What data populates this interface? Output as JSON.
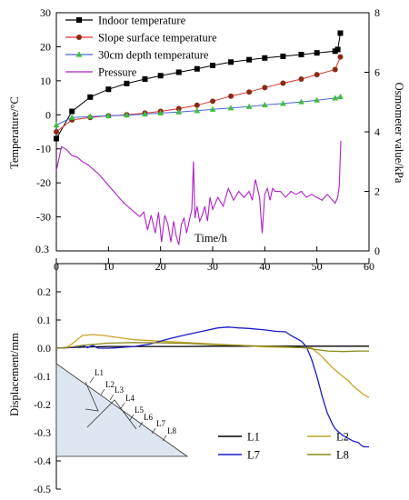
{
  "colors": {
    "indoor": "#000000",
    "slope": "#e23030",
    "slope_marker": "#8b2a12",
    "depth30": "#4a66d8",
    "depth30_marker": "#3fbf3f",
    "pressure": "#b020c8",
    "L1": "#000000",
    "L2": "#c9a227",
    "L7": "#1a1acc",
    "L8": "#8a8a1a",
    "slope_fill": "#dde6f0"
  },
  "chart_data": [
    {
      "type": "line",
      "xlabel": "Time/h",
      "ylabel_left": "Temperature/°C",
      "ylabel_right": "Osmometer value/kPa",
      "xlim": [
        0,
        60
      ],
      "ylim_left": [
        -40,
        30
      ],
      "ylim_right": [
        0,
        8
      ],
      "x_ticks": [
        "0",
        "10",
        "20",
        "30",
        "40",
        "50",
        "60"
      ],
      "y_ticks_left": [
        "30",
        "20",
        "10",
        "0",
        "-10",
        "-20",
        "-30"
      ],
      "y_ticks_left_values": [
        30,
        20,
        10,
        0,
        -10,
        -20,
        -30
      ],
      "y_bottom_label": "0.3",
      "y_ticks_right": [
        "8",
        "6",
        "4",
        "2",
        "0"
      ],
      "y_ticks_right_values": [
        8,
        6,
        4,
        2,
        0
      ],
      "legend_placement": "top-left",
      "series": [
        {
          "name": "Indoor temperature",
          "axis": "left",
          "marker": "square",
          "x": [
            0,
            3,
            6.5,
            10,
            13.5,
            17,
            20,
            23.5,
            27,
            30,
            33.5,
            37,
            40,
            43.5,
            47,
            50,
            53.5,
            54,
            54.5
          ],
          "y": [
            -7,
            1,
            5.2,
            7.5,
            9.2,
            10.5,
            11.5,
            12.5,
            13.5,
            14.5,
            15.5,
            16.2,
            16.7,
            17.2,
            17.7,
            18.2,
            18.7,
            19.2,
            24
          ]
        },
        {
          "name": "Slope surface temperature",
          "axis": "left",
          "marker": "circle",
          "x": [
            0,
            3,
            6.5,
            10,
            13.5,
            17,
            20,
            23.5,
            27,
            30,
            33.5,
            37,
            40,
            43.5,
            47,
            50,
            53.5,
            54.5
          ],
          "y": [
            -5,
            -1.5,
            -0.8,
            -0.3,
            0,
            0.5,
            1,
            1.8,
            2.8,
            4,
            5.5,
            6.7,
            8,
            9.3,
            10.5,
            11.8,
            13.3,
            17
          ]
        },
        {
          "name": "30cm depth temperature",
          "axis": "left",
          "marker": "triangle",
          "x": [
            0,
            3,
            6.5,
            10,
            13.5,
            17,
            20,
            23.5,
            27,
            30,
            33.5,
            37,
            40,
            43.5,
            47,
            50,
            53.5,
            54.5
          ],
          "y": [
            -3,
            -0.8,
            -0.5,
            -0.3,
            -0.1,
            0.2,
            0.5,
            0.8,
            1.2,
            1.6,
            2,
            2.4,
            2.9,
            3.3,
            3.8,
            4.3,
            4.9,
            5.3
          ]
        },
        {
          "name": "Pressure",
          "axis": "right",
          "marker": "none",
          "x": [
            0,
            1,
            2,
            3,
            4,
            5,
            6,
            7,
            8,
            9,
            10,
            11,
            12,
            13,
            14,
            15,
            16,
            16.8,
            17.5,
            18.2,
            19,
            19.6,
            20.2,
            20.8,
            21.4,
            22,
            22.5,
            23,
            23.5,
            24,
            24.5,
            25,
            25.5,
            26,
            26.3,
            26.6,
            27,
            27.5,
            28,
            28.5,
            29,
            29.5,
            30,
            31,
            32,
            33,
            34,
            35,
            36,
            37,
            37.6,
            38.2,
            39,
            39.5,
            40,
            40.5,
            41,
            41.5,
            42,
            43,
            44,
            45,
            46,
            47,
            48,
            49,
            50,
            51,
            52,
            53,
            53.5,
            54,
            54.3,
            54.6
          ],
          "y": [
            2.7,
            3.5,
            3.4,
            3.2,
            3.15,
            3.0,
            2.9,
            2.75,
            2.6,
            2.4,
            2.2,
            2.0,
            1.8,
            1.6,
            1.45,
            1.3,
            1.15,
            1.3,
            0.7,
            1.2,
            0.6,
            1.3,
            0.3,
            1.2,
            0.9,
            0.3,
            1.0,
            0.5,
            0.2,
            0.9,
            1.1,
            0.6,
            1.0,
            1.4,
            3.0,
            1.1,
            1.5,
            1.0,
            1.2,
            1.5,
            1.0,
            1.8,
            1.4,
            1.8,
            1.5,
            2.1,
            1.7,
            2.0,
            1.8,
            2.0,
            1.7,
            2.4,
            1.8,
            0.6,
            1.9,
            2.1,
            1.7,
            2.1,
            2.0,
            2.0,
            1.8,
            2.0,
            1.9,
            2.0,
            1.8,
            1.9,
            1.8,
            1.7,
            1.9,
            1.7,
            1.6,
            1.8,
            2.2,
            3.7
          ]
        }
      ]
    },
    {
      "type": "line",
      "ylabel": "Displacement/mm",
      "xlim": [
        0,
        60
      ],
      "ylim": [
        -0.5,
        0.3
      ],
      "y_ticks": [
        "0.2",
        "0.1",
        "0.0",
        "-0.1",
        "-0.2",
        "-0.3",
        "-0.4",
        "-0.5"
      ],
      "y_ticks_values": [
        0.2,
        0.1,
        0.0,
        -0.1,
        -0.2,
        -0.3,
        -0.4,
        -0.5
      ],
      "legend_placement": "bottom-right",
      "series": [
        {
          "name": "L1",
          "x": [
            0,
            5,
            10,
            15,
            20,
            25,
            30,
            35,
            40,
            45,
            50,
            55,
            60
          ],
          "y": [
            0.0,
            0.004,
            0.006,
            0.006,
            0.006,
            0.006,
            0.007,
            0.007,
            0.007,
            0.007,
            0.007,
            0.007,
            0.007
          ]
        },
        {
          "name": "L2",
          "x": [
            0,
            2,
            3,
            5,
            7,
            9,
            11,
            13,
            15,
            20,
            25,
            30,
            35,
            40,
            45,
            49,
            50,
            51,
            52,
            53,
            54,
            55,
            56,
            57,
            58,
            59,
            60
          ],
          "y": [
            0.0,
            0.003,
            0.015,
            0.045,
            0.048,
            0.045,
            0.04,
            0.035,
            0.03,
            0.025,
            0.02,
            0.015,
            0.01,
            0.005,
            0.003,
            0.001,
            -0.015,
            -0.03,
            -0.05,
            -0.07,
            -0.085,
            -0.1,
            -0.115,
            -0.135,
            -0.15,
            -0.165,
            -0.175
          ]
        },
        {
          "name": "L7",
          "x": [
            0,
            2,
            4,
            5,
            6,
            7,
            8,
            9,
            10,
            12,
            15,
            18,
            20,
            22,
            25,
            28,
            31,
            33,
            35,
            37,
            40,
            42,
            44,
            45,
            47,
            48,
            49,
            50,
            51,
            52,
            53,
            53.5,
            54,
            55,
            56,
            57,
            58,
            58.5,
            59,
            60
          ],
          "y": [
            0.0,
            0.002,
            0.004,
            0.01,
            0.002,
            0.01,
            0.0,
            0.0,
            0.0,
            0.002,
            0.006,
            0.015,
            0.025,
            0.035,
            0.048,
            0.06,
            0.072,
            0.075,
            0.072,
            0.07,
            0.065,
            0.06,
            0.058,
            0.045,
            0.025,
            0.005,
            -0.04,
            -0.1,
            -0.17,
            -0.23,
            -0.27,
            -0.285,
            -0.295,
            -0.31,
            -0.32,
            -0.33,
            -0.335,
            -0.345,
            -0.35,
            -0.35
          ]
        },
        {
          "name": "L8",
          "x": [
            0,
            2,
            5,
            10,
            15,
            20,
            25,
            30,
            35,
            40,
            45,
            48,
            50,
            52,
            55,
            58,
            60
          ],
          "y": [
            0.0,
            0.002,
            0.01,
            0.018,
            0.02,
            0.019,
            0.017,
            0.013,
            0.01,
            0.007,
            0.004,
            0.001,
            -0.005,
            -0.01,
            -0.012,
            -0.01,
            -0.01
          ]
        }
      ]
    }
  ],
  "inset": {
    "labels": [
      "L1",
      "L2",
      "L3",
      "L4",
      "L5",
      "L6",
      "L7",
      "L8"
    ]
  }
}
